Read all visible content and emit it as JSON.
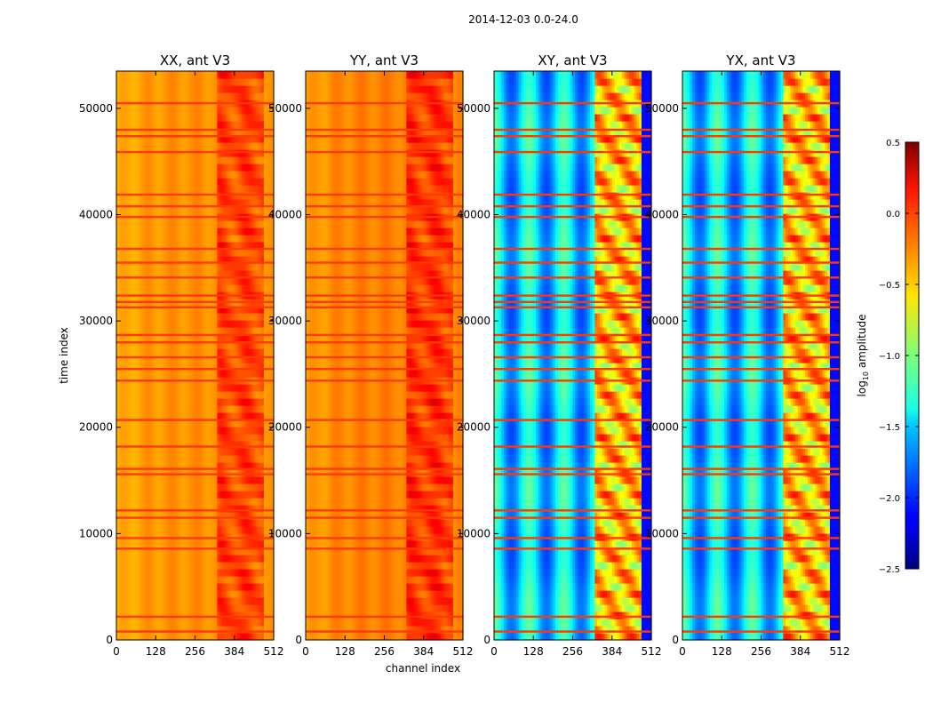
{
  "chart_data": {
    "type": "heatmap",
    "suptitle": "2014-12-03 0.0-24.0",
    "xlabel": "channel index",
    "ylabel": "time index",
    "xlim": [
      0,
      512
    ],
    "ylim": [
      0,
      53500
    ],
    "x_ticks": [
      0,
      128,
      256,
      384,
      512
    ],
    "x_tick_labels": [
      "0",
      "128",
      "256",
      "384",
      "512"
    ],
    "y_ticks": [
      0,
      10000,
      20000,
      30000,
      40000,
      50000
    ],
    "y_tick_labels": [
      "0",
      "10000",
      "20000",
      "30000",
      "40000",
      "50000"
    ],
    "panels": [
      {
        "title": "XX, ant V3",
        "pol": "XX",
        "base_log_amp": -0.3
      },
      {
        "title": "YY, ant V3",
        "pol": "YY",
        "base_log_amp": -0.25
      },
      {
        "title": "XY, ant V3",
        "pol": "XY",
        "base_log_amp": -1.5
      },
      {
        "title": "YX, ant V3",
        "pol": "YX",
        "base_log_amp": -1.5
      }
    ],
    "flagged_time_rows": [
      800,
      2200,
      8600,
      9600,
      11500,
      12200,
      15600,
      16100,
      18200,
      20700,
      24400,
      25500,
      26600,
      28000,
      28700,
      31300,
      31800,
      32400,
      34100,
      35500,
      36800,
      39800,
      40800,
      41900,
      45900,
      47400,
      48000,
      50500
    ],
    "colorbar": {
      "label": "log10 amplitude",
      "label_main": "log",
      "label_sub": "10",
      "label_tail": " amplitude",
      "vmin": -2.5,
      "vmax": 0.5,
      "ticks": [
        0.5,
        0.0,
        -0.5,
        -1.0,
        -1.5,
        -2.0,
        -2.5
      ],
      "tick_labels": [
        "0.5",
        "0.0",
        "−0.5",
        "−1.0",
        "−1.5",
        "−2.0",
        "−2.5"
      ],
      "colormap": "jet"
    }
  }
}
